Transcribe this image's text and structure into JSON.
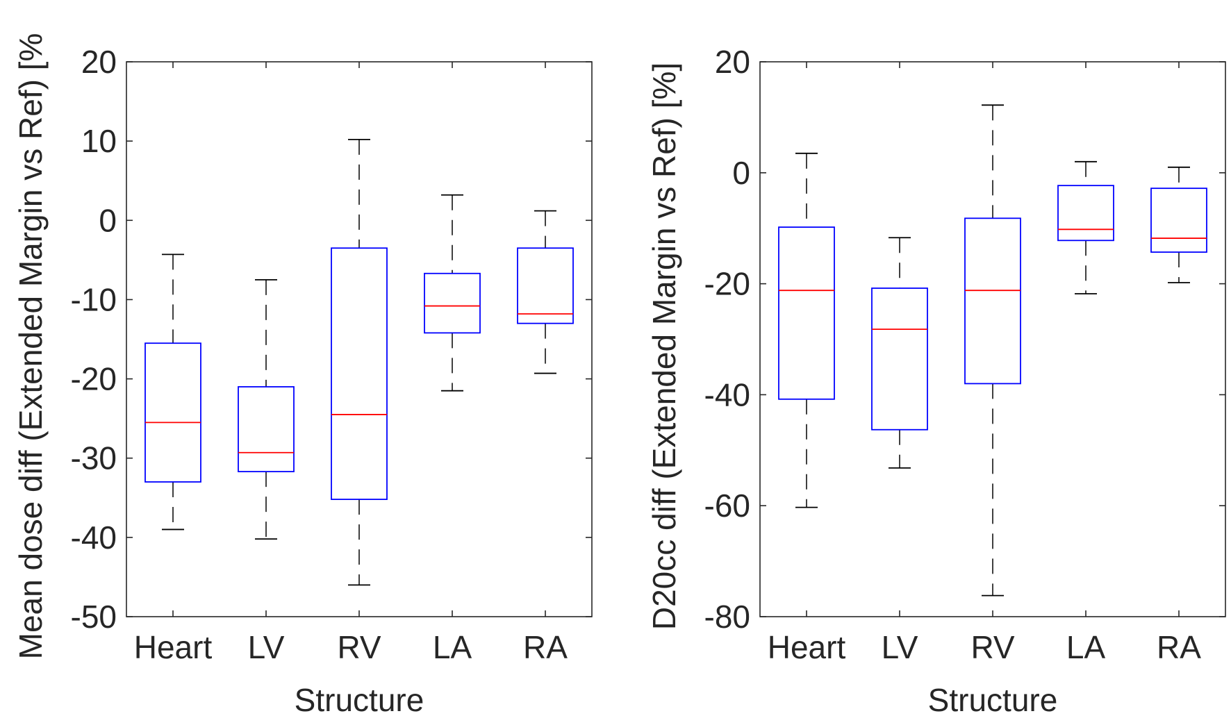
{
  "chart_data": [
    {
      "type": "box",
      "categories": [
        "Heart",
        "LV",
        "RV",
        "LA",
        "RA"
      ],
      "xlabel": "Structure",
      "ylabel": "Mean dose diff  (Extended Margin vs Ref) [%",
      "ylim": [
        -50,
        20
      ],
      "yticks": [
        -50,
        -40,
        -30,
        -20,
        -10,
        0,
        10,
        20
      ],
      "grid": false,
      "colors": {
        "box": "#0000ff",
        "median": "#ff0000",
        "whisker": "#000000"
      },
      "boxes": [
        {
          "category": "Heart",
          "min": -39,
          "q1": -33,
          "median": -25.5,
          "q3": -15.5,
          "max": -4.3
        },
        {
          "category": "LV",
          "min": -40.2,
          "q1": -31.7,
          "median": -29.3,
          "q3": -21,
          "max": -7.5
        },
        {
          "category": "RV",
          "min": -46,
          "q1": -35.2,
          "median": -24.5,
          "q3": -3.5,
          "max": 10.2
        },
        {
          "category": "LA",
          "min": -21.5,
          "q1": -14.2,
          "median": -10.8,
          "q3": -6.7,
          "max": 3.2
        },
        {
          "category": "RA",
          "min": -19.3,
          "q1": -13,
          "median": -11.8,
          "q3": -3.5,
          "max": 1.2
        }
      ]
    },
    {
      "type": "box",
      "categories": [
        "Heart",
        "LV",
        "RV",
        "LA",
        "RA"
      ],
      "xlabel": "Structure",
      "ylabel": "D20cc diff (Extended Margin vs Ref) [%]",
      "ylim": [
        -80,
        20
      ],
      "yticks": [
        -80,
        -60,
        -40,
        -20,
        0,
        20
      ],
      "grid": false,
      "colors": {
        "box": "#0000ff",
        "median": "#ff0000",
        "whisker": "#000000"
      },
      "boxes": [
        {
          "category": "Heart",
          "min": -60.3,
          "q1": -40.8,
          "median": -21.2,
          "q3": -9.8,
          "max": 3.5
        },
        {
          "category": "LV",
          "min": -53.2,
          "q1": -46.3,
          "median": -28.2,
          "q3": -20.8,
          "max": -11.7
        },
        {
          "category": "RV",
          "min": -76.2,
          "q1": -38,
          "median": -21.2,
          "q3": -8.2,
          "max": 12.2
        },
        {
          "category": "LA",
          "min": -21.8,
          "q1": -12.2,
          "median": -10.2,
          "q3": -2.3,
          "max": 2
        },
        {
          "category": "RA",
          "min": -19.8,
          "q1": -14.3,
          "median": -11.8,
          "q3": -2.8,
          "max": 1
        }
      ]
    }
  ]
}
